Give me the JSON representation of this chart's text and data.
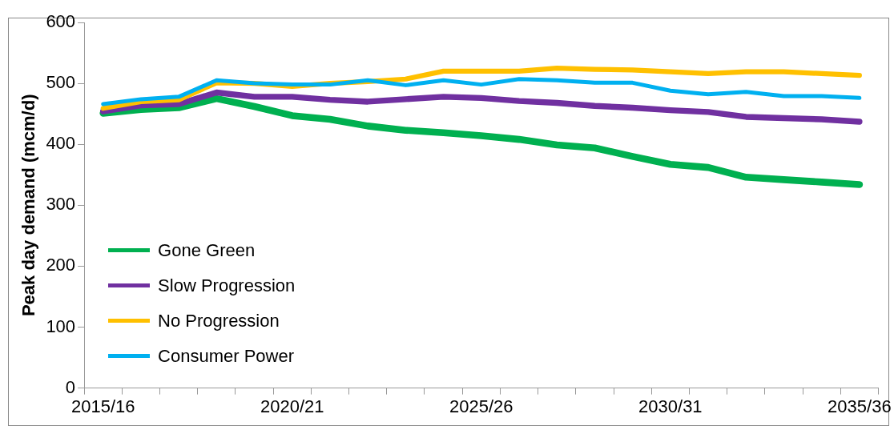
{
  "chart_data": {
    "type": "line",
    "ylabel": "Peak day demand (mcm/d)",
    "categories": [
      "2015/16",
      null,
      null,
      null,
      null,
      "2020/21",
      null,
      null,
      null,
      null,
      "2025/26",
      null,
      null,
      null,
      null,
      "2030/31",
      null,
      null,
      null,
      null,
      "2035/36"
    ],
    "series": [
      {
        "name": "Gone Green",
        "color": "#00b050",
        "values": [
          451,
          457,
          460,
          475,
          462,
          447,
          441,
          430,
          423,
          419,
          414,
          408,
          399,
          394,
          380,
          367,
          362,
          346,
          342,
          338,
          334
        ]
      },
      {
        "name": "Slow Progression",
        "color": "#7030a0",
        "values": [
          454,
          464,
          466,
          485,
          478,
          478,
          473,
          470,
          474,
          478,
          476,
          471,
          468,
          463,
          460,
          456,
          453,
          445,
          443,
          441,
          437
        ]
      },
      {
        "name": "No Progression",
        "color": "#ffc000",
        "values": [
          459,
          470,
          473,
          501,
          500,
          495,
          500,
          503,
          507,
          520,
          520,
          520,
          525,
          523,
          522,
          519,
          516,
          519,
          519,
          516,
          513
        ]
      },
      {
        "name": "Consumer Power",
        "color": "#00b0f0",
        "values": [
          466,
          474,
          478,
          505,
          500,
          498,
          498,
          505,
          497,
          505,
          498,
          507,
          505,
          501,
          501,
          488,
          482,
          486,
          479,
          479,
          476
        ]
      }
    ],
    "ylim": [
      0,
      600
    ],
    "yticks": [
      0,
      100,
      200,
      300,
      400,
      500,
      600
    ],
    "grid": false,
    "legend": "bottom left",
    "marker": "none",
    "line_style": "solid"
  }
}
